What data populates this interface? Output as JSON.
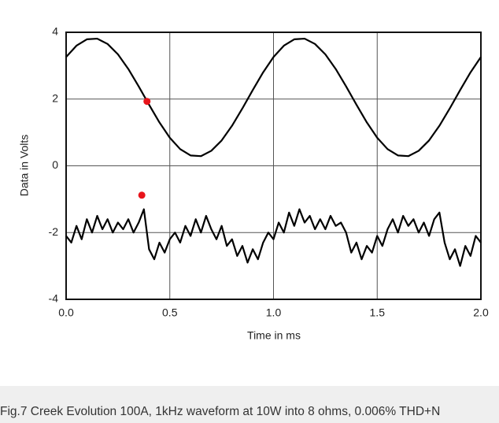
{
  "chart_data": {
    "type": "line",
    "xlabel": "Time in ms",
    "ylabel": "Data in Volts",
    "xlim": [
      0,
      2
    ],
    "ylim": [
      -4,
      4
    ],
    "xticks": [
      {
        "value": 0,
        "label": "0.0"
      },
      0.5,
      {
        "value": 1,
        "label": "1.0"
      },
      1.5,
      {
        "value": 2,
        "label": "2.0"
      }
    ],
    "yticks": [
      -4,
      -2,
      0,
      2,
      4
    ],
    "grid": true,
    "series": [
      {
        "color": "#000000",
        "x": [
          0,
          0.05,
          0.1,
          0.15,
          0.2,
          0.25,
          0.3,
          0.35,
          0.4,
          0.45,
          0.5,
          0.55,
          0.6,
          0.65,
          0.7,
          0.75,
          0.8,
          0.85,
          0.9,
          0.95,
          1,
          1.05,
          1.1,
          1.15,
          1.2,
          1.25,
          1.3,
          1.35,
          1.4,
          1.45,
          1.5,
          1.55,
          1.6,
          1.65,
          1.7,
          1.75,
          1.8,
          1.85,
          1.9,
          1.95,
          2
        ],
        "values": [
          3.26,
          3.6,
          3.79,
          3.81,
          3.65,
          3.34,
          2.9,
          2.38,
          1.83,
          1.3,
          0.84,
          0.5,
          0.31,
          0.29,
          0.45,
          0.76,
          1.2,
          1.72,
          2.27,
          2.8,
          3.26,
          3.6,
          3.79,
          3.81,
          3.65,
          3.34,
          2.9,
          2.38,
          1.83,
          1.3,
          0.84,
          0.5,
          0.31,
          0.29,
          0.45,
          0.76,
          1.2,
          1.72,
          2.27,
          2.8,
          3.26
        ]
      },
      {
        "color": "#000000",
        "x": [
          0,
          0.025,
          0.05,
          0.075,
          0.1,
          0.125,
          0.15,
          0.175,
          0.2,
          0.225,
          0.25,
          0.275,
          0.3,
          0.325,
          0.35,
          0.375,
          0.4,
          0.425,
          0.45,
          0.475,
          0.5,
          0.525,
          0.55,
          0.575,
          0.6,
          0.625,
          0.65,
          0.675,
          0.7,
          0.725,
          0.75,
          0.775,
          0.8,
          0.825,
          0.85,
          0.875,
          0.9,
          0.925,
          0.95,
          0.975,
          1,
          1.025,
          1.05,
          1.075,
          1.1,
          1.125,
          1.15,
          1.175,
          1.2,
          1.225,
          1.25,
          1.275,
          1.3,
          1.325,
          1.35,
          1.375,
          1.4,
          1.425,
          1.45,
          1.475,
          1.5,
          1.525,
          1.55,
          1.575,
          1.6,
          1.625,
          1.65,
          1.675,
          1.7,
          1.725,
          1.75,
          1.775,
          1.8,
          1.825,
          1.85,
          1.875,
          1.9,
          1.925,
          1.95,
          1.975,
          2
        ],
        "values": [
          -2.1,
          -2.3,
          -1.8,
          -2.2,
          -1.6,
          -2.0,
          -1.5,
          -1.9,
          -1.6,
          -2.0,
          -1.7,
          -1.9,
          -1.6,
          -2.0,
          -1.7,
          -1.3,
          -2.5,
          -2.8,
          -2.3,
          -2.6,
          -2.2,
          -2.0,
          -2.3,
          -1.8,
          -2.1,
          -1.6,
          -2.0,
          -1.5,
          -1.9,
          -2.2,
          -1.8,
          -2.4,
          -2.2,
          -2.7,
          -2.4,
          -2.9,
          -2.5,
          -2.8,
          -2.3,
          -2.0,
          -2.2,
          -1.7,
          -2.0,
          -1.4,
          -1.8,
          -1.3,
          -1.7,
          -1.5,
          -1.9,
          -1.6,
          -1.9,
          -1.5,
          -1.8,
          -1.7,
          -2.0,
          -2.6,
          -2.3,
          -2.8,
          -2.4,
          -2.6,
          -2.1,
          -2.4,
          -1.9,
          -1.6,
          -2.0,
          -1.5,
          -1.8,
          -1.6,
          -2.0,
          -1.7,
          -2.1,
          -1.6,
          -1.4,
          -2.3,
          -2.8,
          -2.5,
          -3.0,
          -2.4,
          -2.7,
          -2.1,
          -2.3
        ]
      }
    ],
    "points": {
      "color": "#e8141b",
      "x": [
        0.39,
        0.365
      ],
      "values": [
        1.93,
        -0.88
      ]
    }
  },
  "caption": "Fig.7 Creek Evolution 100A, 1kHz waveform at 10W into 8 ohms, 0.006% THD+N"
}
